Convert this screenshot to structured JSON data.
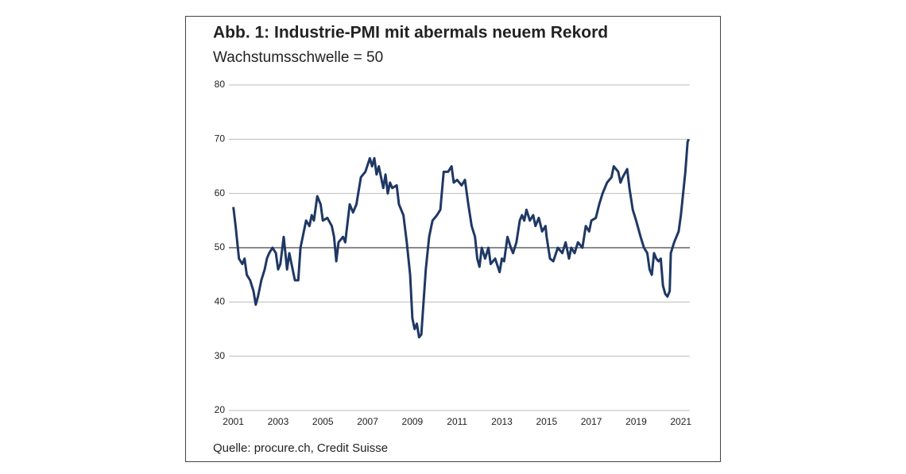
{
  "chart_data": {
    "type": "line",
    "title": "Abb. 1: Industrie-PMI mit abermals neuem Rekord",
    "subtitle": "Wachstumsschwelle = 50",
    "source": "Quelle: procure.ch, Credit Suisse",
    "color": "#1f3864",
    "reference_line": 50,
    "grid": true,
    "xlim": [
      2000.8,
      2021.4
    ],
    "xticks": [
      2001,
      2003,
      2005,
      2007,
      2009,
      2011,
      2013,
      2015,
      2017,
      2019,
      2021
    ],
    "ylim": [
      20,
      80
    ],
    "yticks": [
      20,
      30,
      40,
      50,
      60,
      70,
      80
    ],
    "x": [
      2001.0,
      2001.1,
      2001.25,
      2001.4,
      2001.5,
      2001.6,
      2001.75,
      2001.9,
      2002.0,
      2002.1,
      2002.25,
      2002.4,
      2002.5,
      2002.6,
      2002.75,
      2002.9,
      2003.0,
      2003.1,
      2003.25,
      2003.4,
      2003.5,
      2003.6,
      2003.75,
      2003.9,
      2004.0,
      2004.1,
      2004.25,
      2004.4,
      2004.5,
      2004.6,
      2004.75,
      2004.9,
      2005.0,
      2005.2,
      2005.4,
      2005.5,
      2005.6,
      2005.7,
      2005.9,
      2006.0,
      2006.2,
      2006.35,
      2006.5,
      2006.7,
      2006.9,
      2007.1,
      2007.2,
      2007.3,
      2007.4,
      2007.5,
      2007.6,
      2007.7,
      2007.8,
      2007.9,
      2008.0,
      2008.1,
      2008.3,
      2008.4,
      2008.6,
      2008.75,
      2008.9,
      2009.0,
      2009.1,
      2009.2,
      2009.3,
      2009.4,
      2009.5,
      2009.6,
      2009.75,
      2009.9,
      2010.0,
      2010.1,
      2010.25,
      2010.4,
      2010.6,
      2010.75,
      2010.85,
      2011.0,
      2011.2,
      2011.35,
      2011.5,
      2011.65,
      2011.8,
      2011.9,
      2012.0,
      2012.1,
      2012.25,
      2012.4,
      2012.5,
      2012.7,
      2012.9,
      2013.0,
      2013.1,
      2013.25,
      2013.4,
      2013.5,
      2013.65,
      2013.8,
      2013.9,
      2014.0,
      2014.1,
      2014.25,
      2014.4,
      2014.5,
      2014.65,
      2014.8,
      2014.95,
      2015.0,
      2015.15,
      2015.3,
      2015.5,
      2015.7,
      2015.85,
      2016.0,
      2016.1,
      2016.25,
      2016.4,
      2016.6,
      2016.75,
      2016.9,
      2017.0,
      2017.2,
      2017.35,
      2017.5,
      2017.7,
      2017.9,
      2018.0,
      2018.2,
      2018.3,
      2018.4,
      2018.6,
      2018.7,
      2018.85,
      2019.0,
      2019.2,
      2019.35,
      2019.5,
      2019.6,
      2019.7,
      2019.8,
      2019.9,
      2020.0,
      2020.1,
      2020.2,
      2020.3,
      2020.4,
      2020.5,
      2020.55,
      2020.7,
      2020.8,
      2020.9,
      2021.0,
      2021.1,
      2021.2,
      2021.3,
      2021.35
    ],
    "values": [
      57.5,
      54,
      48,
      47,
      48,
      45,
      44,
      42,
      39.5,
      41,
      44,
      46,
      48,
      49,
      50,
      49,
      46,
      47,
      52,
      46,
      49,
      47,
      44,
      44,
      50,
      52,
      55,
      54,
      56,
      55,
      59.5,
      58,
      55,
      55.5,
      54,
      52,
      47.5,
      51,
      52,
      51,
      58,
      56.5,
      58,
      63,
      64,
      66.5,
      65,
      66.5,
      63.5,
      65,
      63,
      61,
      63.5,
      60,
      62,
      61,
      61.5,
      58,
      56,
      51,
      45,
      37,
      35,
      36,
      33.5,
      34,
      40,
      46,
      52,
      55,
      55.5,
      56,
      57,
      64,
      64,
      65,
      62,
      62.5,
      61.5,
      62.5,
      58,
      54,
      52,
      48,
      46.5,
      50,
      48,
      50,
      47,
      48,
      45.5,
      48,
      47.5,
      52,
      50,
      49,
      51,
      55,
      56,
      55,
      57,
      55,
      56,
      54,
      55.5,
      53,
      54,
      52,
      48,
      47.5,
      50,
      49,
      51,
      48,
      50,
      49,
      51,
      50,
      54,
      53,
      55,
      55.5,
      58,
      60,
      62,
      63,
      65,
      64,
      62,
      63,
      64.5,
      61,
      57,
      55,
      52,
      50,
      49,
      46,
      45,
      49,
      48,
      47.5,
      48,
      43,
      41.5,
      41,
      42,
      49,
      51,
      52,
      53,
      56,
      60,
      64,
      69.5,
      70
    ]
  }
}
